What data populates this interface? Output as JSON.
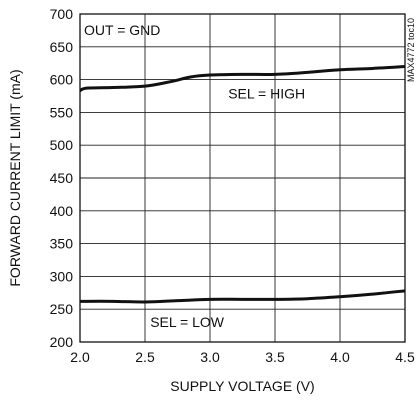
{
  "chart_data": {
    "type": "line",
    "xlabel": "SUPPLY VOLTAGE (V)",
    "ylabel": "FORWARD CURRENT LIMIT (mA)",
    "xlim": [
      2.0,
      4.5
    ],
    "ylim": [
      200,
      700
    ],
    "x_ticks": [
      2.0,
      2.5,
      3.0,
      3.5,
      4.0,
      4.5
    ],
    "x_tick_labels": [
      "2.0",
      "2.5",
      "3.0",
      "3.5",
      "4.0",
      "4.5"
    ],
    "y_ticks": [
      200,
      250,
      300,
      350,
      400,
      450,
      500,
      550,
      600,
      650,
      700
    ],
    "y_tick_labels": [
      "200",
      "250",
      "300",
      "350",
      "400",
      "450",
      "500",
      "550",
      "600",
      "650",
      "700"
    ],
    "grid": true,
    "series": [
      {
        "name": "SEL = HIGH",
        "x": [
          2.0,
          2.05,
          2.25,
          2.5,
          2.7,
          2.85,
          3.0,
          3.25,
          3.5,
          3.75,
          4.0,
          4.25,
          4.5
        ],
        "y": [
          583,
          587,
          588,
          590,
          597,
          604,
          607,
          608,
          608,
          611,
          615,
          617,
          620
        ]
      },
      {
        "name": "SEL = LOW",
        "x": [
          2.0,
          2.25,
          2.5,
          2.75,
          3.0,
          3.25,
          3.5,
          3.75,
          4.0,
          4.25,
          4.5
        ],
        "y": [
          262,
          262,
          261,
          263,
          265,
          265,
          265,
          266,
          269,
          273,
          278
        ]
      }
    ],
    "annotations": {
      "out": "OUT = GND",
      "high": "SEL = HIGH",
      "low": "SEL = LOW",
      "side": "MAX4772 toc10"
    }
  }
}
